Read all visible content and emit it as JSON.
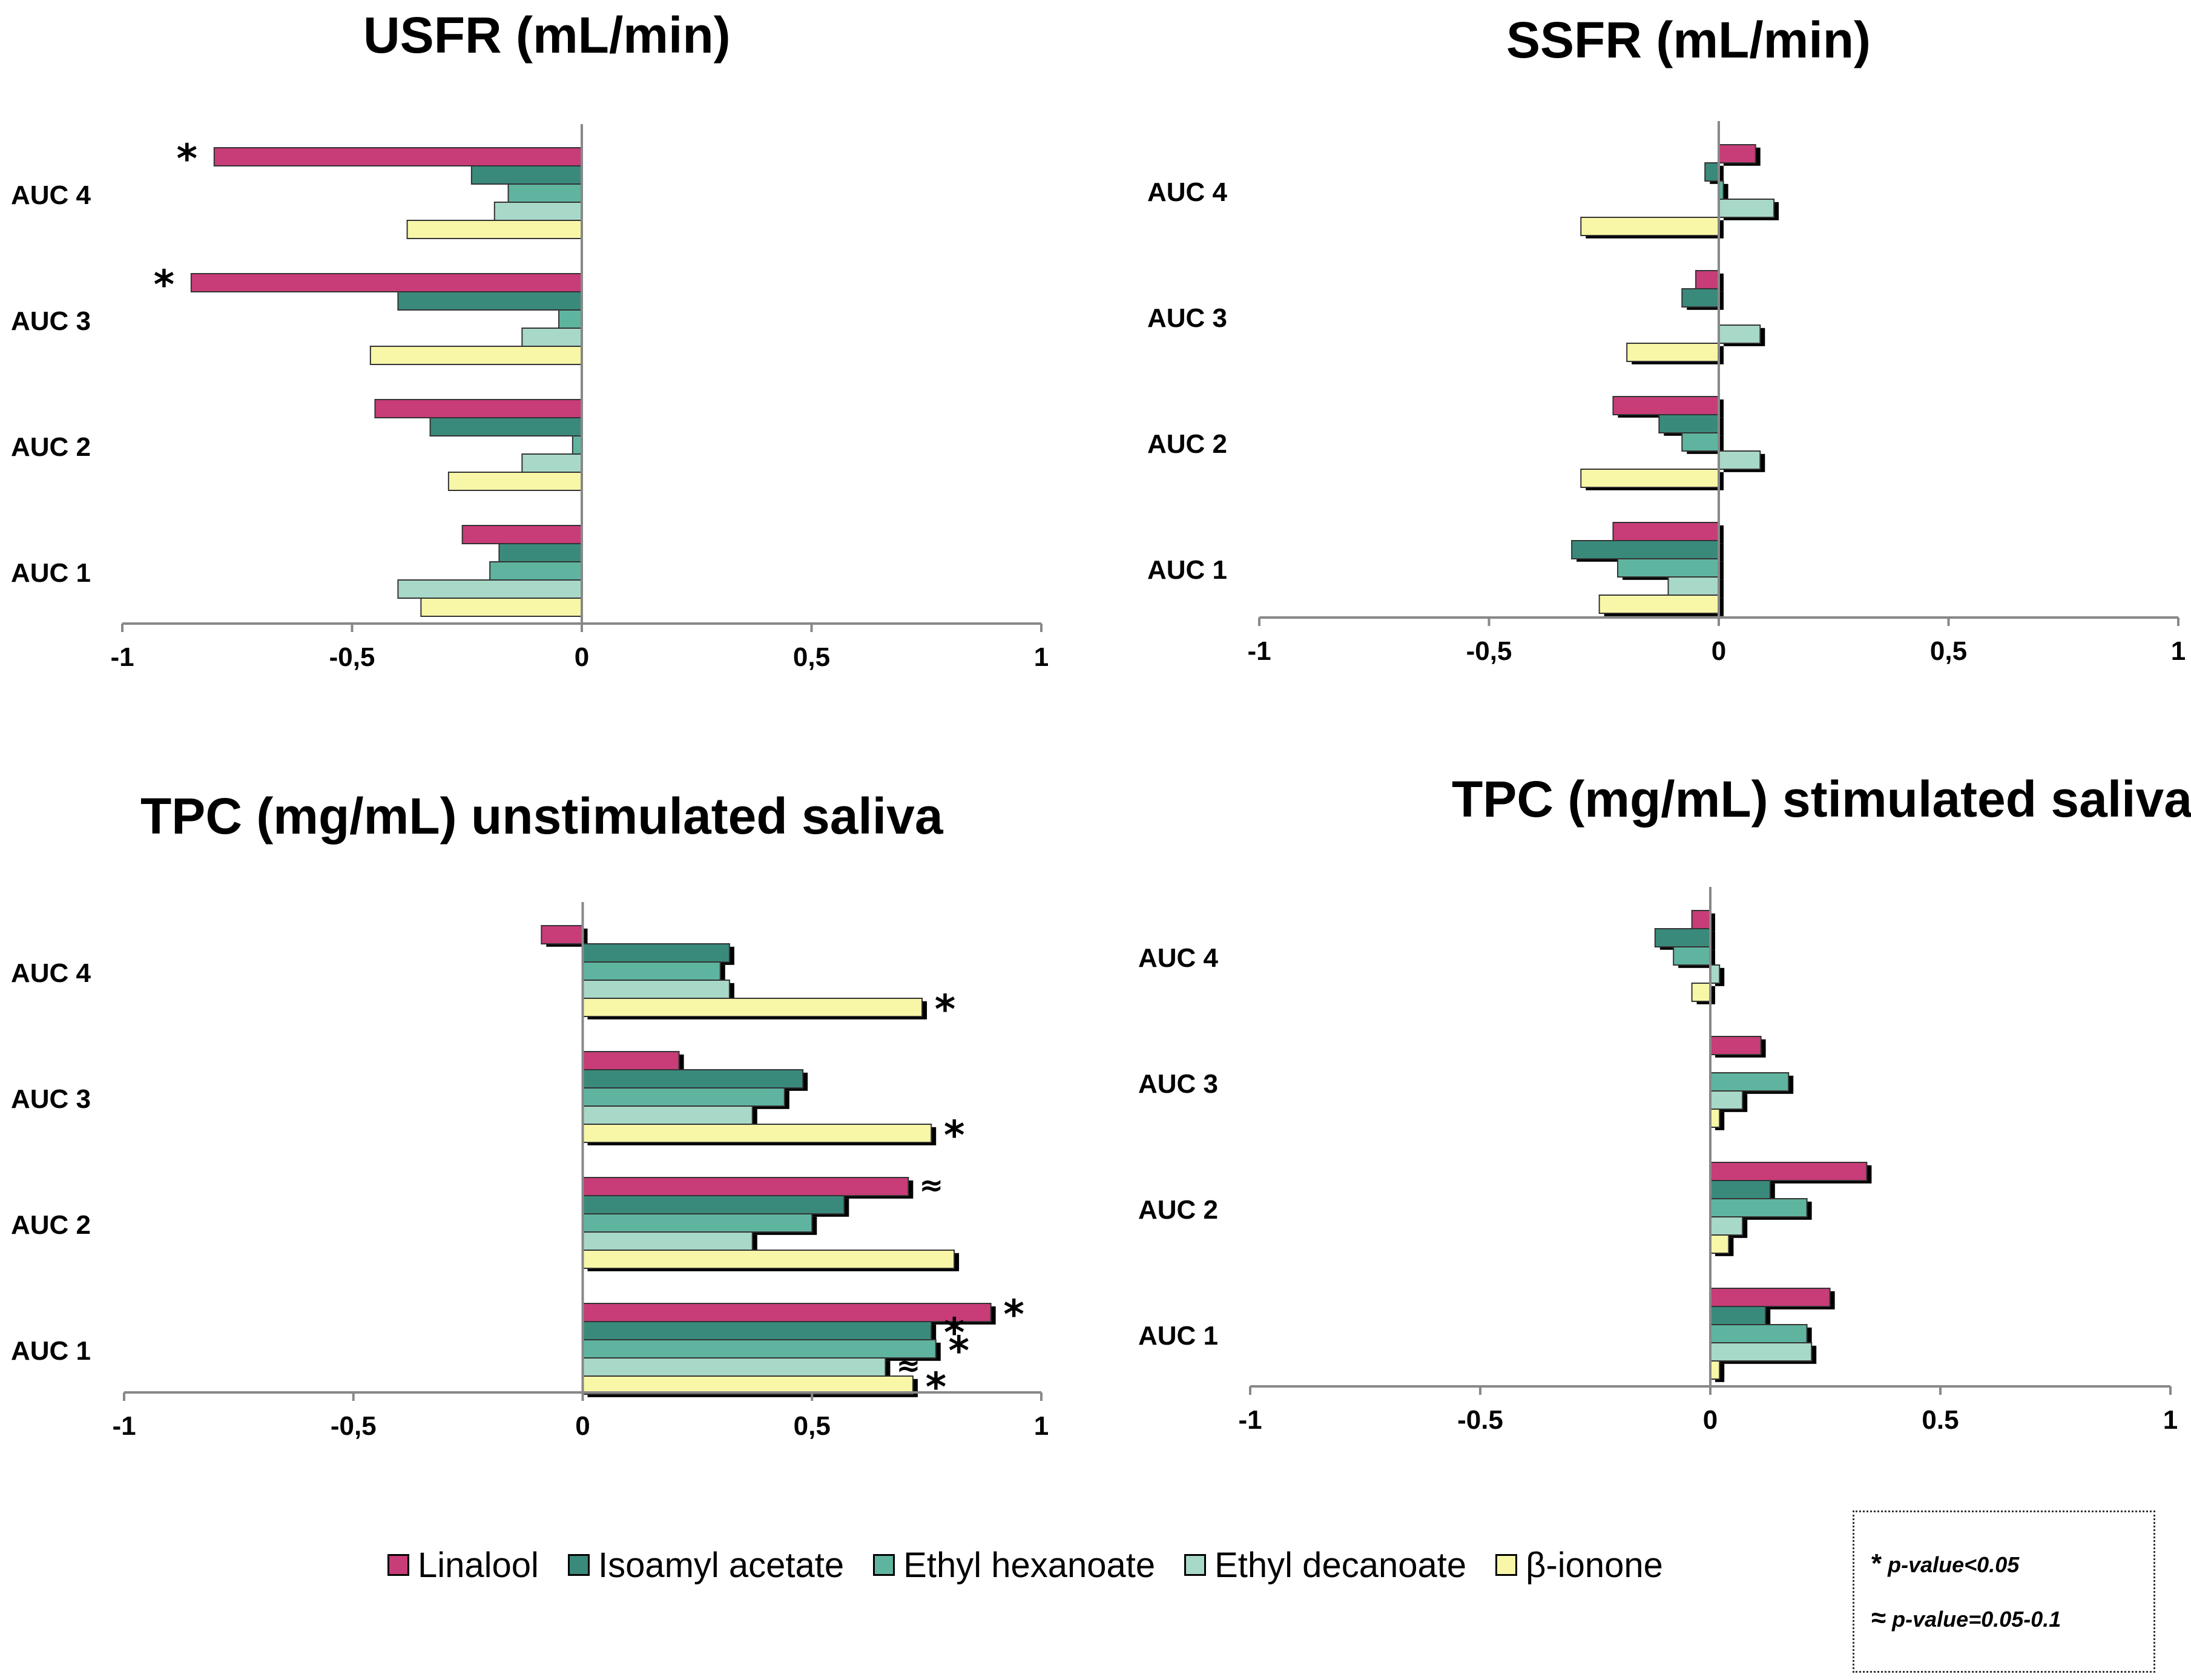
{
  "colors": {
    "linalool": "#c83c78",
    "isoamyl_acetate": "#3a8a7c",
    "ethyl_hexanoate": "#5fb4a0",
    "ethyl_decanoate": "#a8d8c8",
    "beta_ionone": "#f8f7a8",
    "axis": "#888888"
  },
  "legend": {
    "items": [
      "Linalool",
      "Isoamyl acetate",
      "Ethyl hexanoate",
      "Ethyl decanoate",
      "β-ionone"
    ],
    "significance": {
      "star_symbol": "*",
      "star_label": "p-value<0.05",
      "approx_symbol": "≈",
      "approx_label": "p-value=0.05-0.1"
    }
  },
  "chart_data": [
    {
      "type": "bar",
      "orientation": "horizontal",
      "title": "USFR (mL/min)",
      "categories": [
        "AUC 4",
        "AUC 3",
        "AUC 2",
        "AUC 1"
      ],
      "xlim": [
        -1,
        1
      ],
      "xticks": [
        "-1",
        "-0,5",
        "0",
        "0,5",
        "1"
      ],
      "series": [
        {
          "name": "Linalool",
          "values": [
            -0.8,
            -0.85,
            -0.45,
            -0.26
          ]
        },
        {
          "name": "Isoamyl acetate",
          "values": [
            -0.24,
            -0.4,
            -0.33,
            -0.18
          ]
        },
        {
          "name": "Ethyl hexanoate",
          "values": [
            -0.16,
            -0.05,
            -0.02,
            -0.2
          ]
        },
        {
          "name": "Ethyl decanoate",
          "values": [
            -0.19,
            -0.13,
            -0.13,
            -0.4
          ]
        },
        {
          "name": "β-ionone",
          "values": [
            -0.38,
            -0.46,
            -0.29,
            -0.35
          ]
        }
      ],
      "annotations": [
        {
          "category": "AUC 4",
          "series": "Linalool",
          "mark": "*"
        },
        {
          "category": "AUC 3",
          "series": "Linalool",
          "mark": "*"
        }
      ]
    },
    {
      "type": "bar",
      "orientation": "horizontal",
      "title": "SSFR (mL/min)",
      "categories": [
        "AUC 4",
        "AUC 3",
        "AUC 2",
        "AUC 1"
      ],
      "xlim": [
        -1,
        1
      ],
      "xticks": [
        "-1",
        "-0,5",
        "0",
        "0,5",
        "1"
      ],
      "series": [
        {
          "name": "Linalool",
          "values": [
            0.08,
            -0.05,
            -0.23,
            -0.23
          ]
        },
        {
          "name": "Isoamyl acetate",
          "values": [
            -0.03,
            -0.08,
            -0.13,
            -0.32
          ]
        },
        {
          "name": "Ethyl hexanoate",
          "values": [
            0.01,
            0.0,
            -0.08,
            -0.22
          ]
        },
        {
          "name": "Ethyl decanoate",
          "values": [
            0.12,
            0.09,
            0.09,
            -0.11
          ]
        },
        {
          "name": "β-ionone",
          "values": [
            -0.3,
            -0.2,
            -0.3,
            -0.26
          ]
        }
      ],
      "annotations": []
    },
    {
      "type": "bar",
      "orientation": "horizontal",
      "title": "TPC (mg/mL) unstimulated saliva",
      "categories": [
        "AUC 4",
        "AUC 3",
        "AUC 2",
        "AUC 1"
      ],
      "xlim": [
        -1,
        1
      ],
      "xticks": [
        "-1",
        "-0,5",
        "0",
        "0,5",
        "1"
      ],
      "series": [
        {
          "name": "Linalool",
          "values": [
            -0.09,
            0.21,
            0.71,
            0.89
          ]
        },
        {
          "name": "Isoamyl acetate",
          "values": [
            0.32,
            0.48,
            0.57,
            0.76
          ]
        },
        {
          "name": "Ethyl hexanoate",
          "values": [
            0.3,
            0.44,
            0.5,
            0.77
          ]
        },
        {
          "name": "Ethyl decanoate",
          "values": [
            0.32,
            0.37,
            0.37,
            0.66
          ]
        },
        {
          "name": "β-ionone",
          "values": [
            0.74,
            0.76,
            0.81,
            0.72
          ]
        }
      ],
      "annotations": [
        {
          "category": "AUC 4",
          "series": "β-ionone",
          "mark": "*"
        },
        {
          "category": "AUC 3",
          "series": "β-ionone",
          "mark": "*"
        },
        {
          "category": "AUC 2",
          "series": "Linalool",
          "mark": "≈"
        },
        {
          "category": "AUC 1",
          "series": "Linalool",
          "mark": "*"
        },
        {
          "category": "AUC 1",
          "series": "Isoamyl acetate",
          "mark": "*"
        },
        {
          "category": "AUC 1",
          "series": "Ethyl hexanoate",
          "mark": "*"
        },
        {
          "category": "AUC 1",
          "series": "Ethyl decanoate",
          "mark": "≈"
        },
        {
          "category": "AUC 1",
          "series": "β-ionone",
          "mark": "*"
        }
      ]
    },
    {
      "type": "bar",
      "orientation": "horizontal",
      "title": "TPC (mg/mL) stimulated saliva",
      "categories": [
        "AUC 4",
        "AUC 3",
        "AUC 2",
        "AUC 1"
      ],
      "xlim": [
        -1,
        1
      ],
      "xticks": [
        "-1",
        "-0.5",
        "0",
        "0.5",
        "1"
      ],
      "series": [
        {
          "name": "Linalool",
          "values": [
            -0.04,
            0.11,
            0.34,
            0.26
          ]
        },
        {
          "name": "Isoamyl acetate",
          "values": [
            -0.12,
            0.0,
            0.13,
            0.12
          ]
        },
        {
          "name": "Ethyl hexanoate",
          "values": [
            -0.08,
            0.17,
            0.21,
            0.21
          ]
        },
        {
          "name": "Ethyl decanoate",
          "values": [
            0.02,
            0.07,
            0.07,
            0.22
          ]
        },
        {
          "name": "β-ionone",
          "values": [
            -0.04,
            0.02,
            0.04,
            0.02
          ]
        }
      ],
      "annotations": []
    }
  ]
}
